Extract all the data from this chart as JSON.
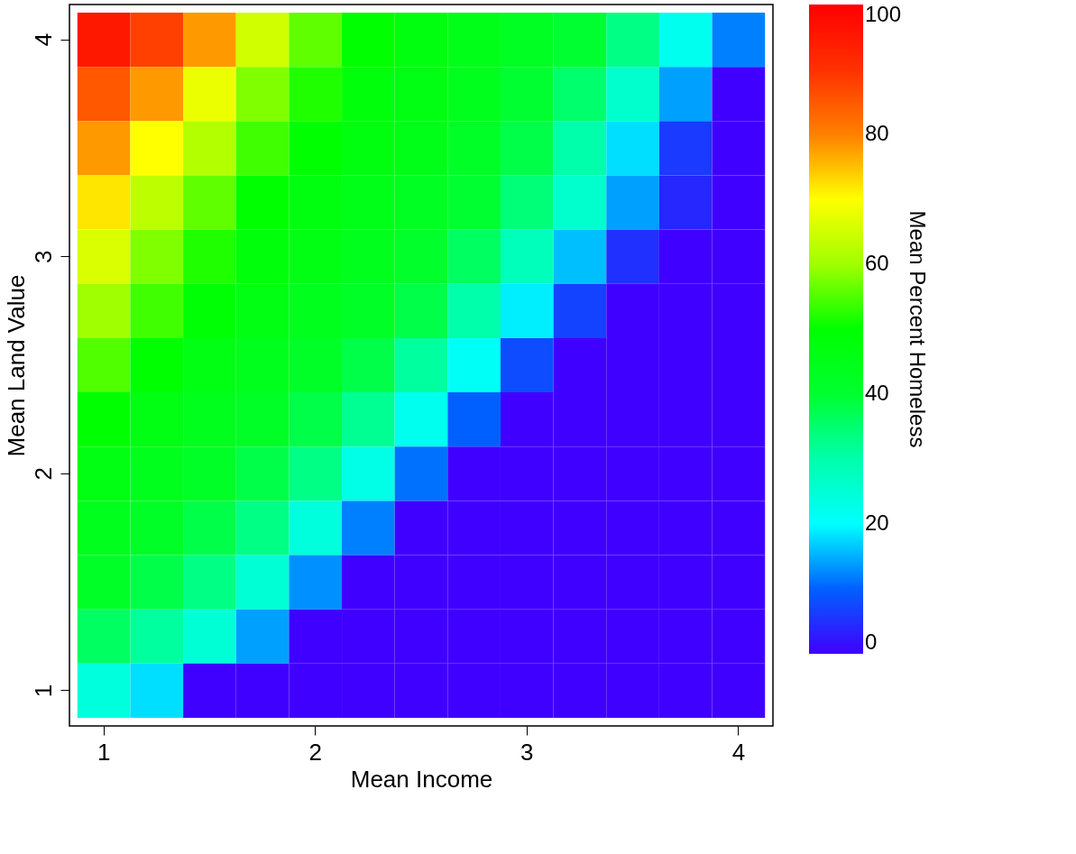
{
  "chart_data": {
    "type": "heatmap",
    "xlabel": "Mean Income",
    "ylabel": "Mean Land Value",
    "clabel": "Mean Percent Homeless",
    "categories": [
      "1",
      null,
      null,
      null,
      "2",
      null,
      null,
      null,
      "3",
      null,
      null,
      null,
      "4"
    ],
    "y_categories": [
      "4",
      null,
      null,
      null,
      "3",
      null,
      null,
      null,
      "2",
      null,
      null,
      null,
      "1"
    ],
    "cells": [
      [
        95,
        88,
        78,
        65,
        56,
        50,
        47,
        45,
        43,
        40,
        33,
        22,
        12
      ],
      [
        85,
        78,
        68,
        58,
        52,
        48,
        46,
        44,
        40,
        35,
        26,
        14,
        0
      ],
      [
        78,
        70,
        62,
        54,
        50,
        47,
        45,
        42,
        38,
        30,
        18,
        6,
        0
      ],
      [
        72,
        63,
        56,
        50,
        47,
        45,
        43,
        40,
        34,
        26,
        14,
        4,
        0
      ],
      [
        66,
        58,
        52,
        48,
        46,
        44,
        41,
        36,
        28,
        16,
        5,
        0,
        0
      ],
      [
        60,
        54,
        49,
        46,
        44,
        42,
        38,
        30,
        19,
        7,
        0,
        0,
        0
      ],
      [
        55,
        50,
        46,
        44,
        42,
        38,
        31,
        21,
        8,
        0,
        0,
        0,
        0
      ],
      [
        50,
        46,
        44,
        42,
        38,
        32,
        22,
        10,
        0,
        0,
        0,
        0,
        0
      ],
      [
        46,
        44,
        42,
        38,
        33,
        23,
        11,
        0,
        0,
        0,
        0,
        0,
        0
      ],
      [
        44,
        42,
        38,
        33,
        24,
        12,
        0,
        0,
        0,
        0,
        0,
        0,
        0
      ],
      [
        42,
        38,
        33,
        25,
        13,
        0,
        0,
        0,
        0,
        0,
        0,
        0,
        0
      ],
      [
        36,
        31,
        25,
        14,
        0,
        0,
        0,
        0,
        0,
        0,
        0,
        0,
        0
      ],
      [
        24,
        18,
        0,
        0,
        0,
        0,
        0,
        0,
        0,
        0,
        0,
        0,
        0
      ]
    ],
    "colors": [
      "#4000ff",
      "#0060ff",
      "#00ffff",
      "#00ffaa",
      "#00ff30",
      "#00ff00",
      "#a0ff00",
      "#ffff00",
      "#ff8000",
      "#ff3000",
      "#ff0000"
    ],
    "clim": [
      0,
      100
    ],
    "cticks": [
      0,
      20,
      40,
      60,
      80,
      100
    ],
    "grid": false
  }
}
